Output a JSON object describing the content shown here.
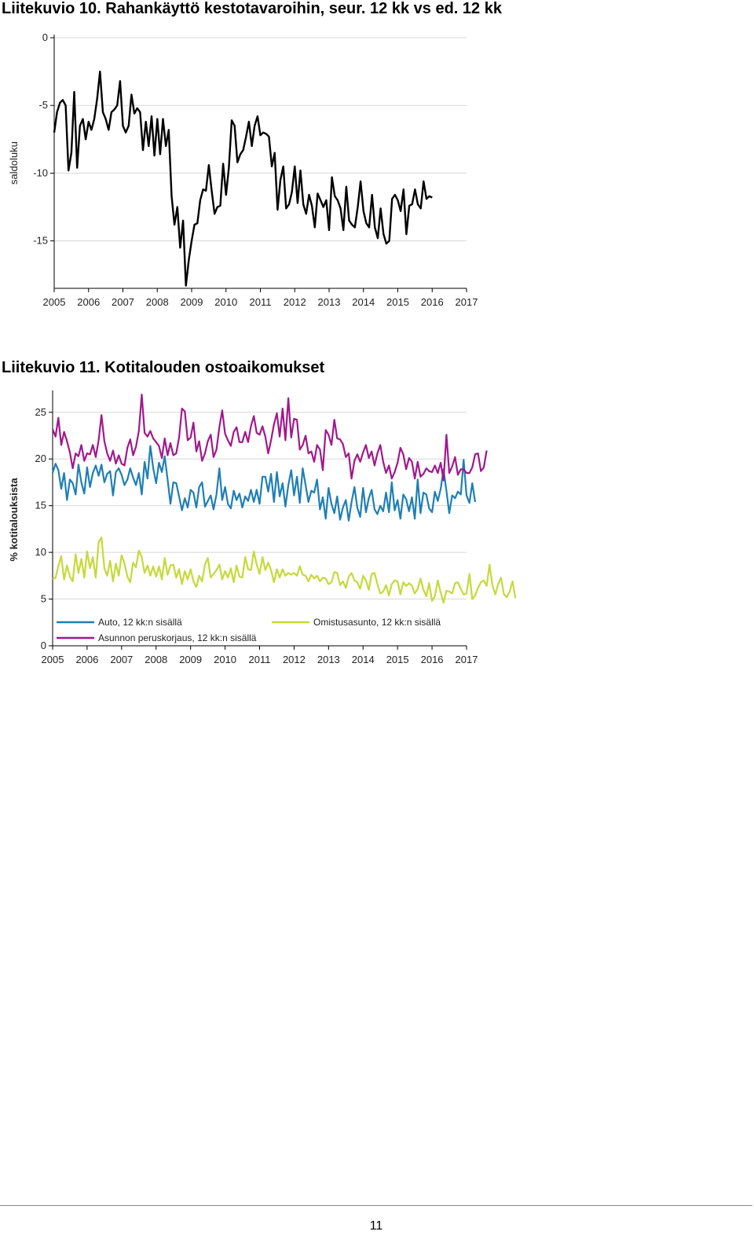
{
  "figures": [
    {
      "title": "Liitekuvio 10. Rahankäyttö kestotavaroihin, seur. 12 kk vs ed. 12 kk"
    },
    {
      "title": "Liitekuvio 11. Kotitalouden ostoaikomukset"
    }
  ],
  "page_number": "11",
  "chart_data": [
    {
      "type": "line",
      "title": "Liitekuvio 10. Rahankäyttö kestotavaroihin, seur. 12 kk vs ed. 12 kk",
      "xlabel": "",
      "ylabel": "saldoluku",
      "ylim": [
        -18.5,
        0
      ],
      "xlim": [
        2005,
        2017
      ],
      "yticks": [
        0,
        -5,
        -10,
        -15
      ],
      "ytick_labels": [
        "0",
        "-5",
        "-10",
        "-15"
      ],
      "xticks": [
        "2005",
        "2006",
        "2007",
        "2008",
        "2009",
        "2010",
        "2011",
        "2012",
        "2013",
        "2014",
        "2015",
        "2016",
        "2017"
      ],
      "grid": "horizontal",
      "colors": {
        "series": "#000000",
        "grid": "#d0d0d0",
        "axis": "#000000"
      },
      "series": [
        {
          "name": "",
          "x_start": "2005-01",
          "frequency": "monthly",
          "values": [
            -7,
            -5.5,
            -4.8,
            -4.6,
            -5,
            -9.8,
            -8.5,
            -4,
            -9.6,
            -6.5,
            -6,
            -7.5,
            -6.2,
            -6.8,
            -6,
            -4.5,
            -2.5,
            -5.5,
            -6,
            -6.8,
            -5.5,
            -5.3,
            -5,
            -3.2,
            -6.5,
            -7,
            -6.5,
            -4.2,
            -5.6,
            -5.2,
            -5.5,
            -8.3,
            -6.2,
            -8,
            -5.8,
            -8.7,
            -6,
            -8.6,
            -6,
            -8,
            -6.8,
            -11.7,
            -13.8,
            -12.5,
            -15.5,
            -13.5,
            -18.3,
            -16.4,
            -15,
            -13.8,
            -13.7,
            -12,
            -11.2,
            -11.3,
            -9.4,
            -11.3,
            -13,
            -12.5,
            -12.4,
            -9.3,
            -11.6,
            -9.6,
            -6.1,
            -6.5,
            -9.2,
            -8.6,
            -8.3,
            -7.3,
            -6.2,
            -8,
            -6.5,
            -5.8,
            -7.2,
            -7,
            -7.1,
            -7.3,
            -9.5,
            -8.5,
            -12.7,
            -10.5,
            -9.5,
            -12.6,
            -12.3,
            -11.4,
            -9.5,
            -12.2,
            -9.8,
            -12.3,
            -13,
            -11.6,
            -12.4,
            -14,
            -11.5,
            -12,
            -12.5,
            -12,
            -14.2,
            -10.3,
            -11.7,
            -12,
            -12.6,
            -14.2,
            -11,
            -13.5,
            -13.8,
            -14,
            -12.5,
            -10.6,
            -12.8,
            -13.7,
            -14,
            -11.6,
            -14,
            -14.8,
            -12.6,
            -14.5,
            -15.2,
            -15,
            -11.9,
            -11.6,
            -12,
            -12.8,
            -11.2,
            -14.5,
            -12.4,
            -12.3,
            -11.2,
            -12.3,
            -12.6,
            -10.6,
            -11.9,
            -11.7,
            -11.8
          ]
        }
      ]
    },
    {
      "type": "line",
      "title": "Liitekuvio 11. Kotitalouden ostoaikomukset",
      "xlabel": "",
      "ylabel": "% kotitalouksista",
      "ylim": [
        0,
        27
      ],
      "xlim": [
        2005,
        2017
      ],
      "yticks": [
        0,
        5,
        10,
        15,
        20,
        25
      ],
      "ytick_labels": [
        "0",
        "5",
        "10",
        "15",
        "20",
        "25"
      ],
      "xticks": [
        "2005",
        "2006",
        "2007",
        "2008",
        "2009",
        "2010",
        "2011",
        "2012",
        "2013",
        "2014",
        "2015",
        "2016",
        "2017"
      ],
      "grid": "horizontal",
      "legend": "inside-bottom",
      "series": [
        {
          "name": "Auto, 12 kk:n sisällä",
          "color": "#1f7fb4",
          "x_start": "2005-01",
          "frequency": "monthly",
          "values": [
            18.5,
            19.5,
            18.8,
            16.8,
            18.5,
            15.6,
            17.8,
            17.4,
            16.2,
            19.4,
            17.5,
            16.3,
            19.1,
            17,
            18.5,
            19.3,
            18.2,
            19.4,
            17.5,
            18.4,
            18.7,
            16.1,
            18.6,
            19,
            18.3,
            17.2,
            17.8,
            19,
            18,
            17.2,
            18.5,
            16.2,
            19.7,
            17.9,
            21.4,
            19,
            17.4,
            19.6,
            18.6,
            20.3,
            17.8,
            15.2,
            17.5,
            17.4,
            16,
            14.5,
            15.8,
            14.8,
            16.7,
            16.4,
            14.8,
            17,
            17.5,
            14.9,
            15.5,
            16.1,
            14.6,
            16.2,
            19,
            15.6,
            17,
            15.2,
            14.7,
            16.6,
            15.6,
            16.3,
            14.8,
            16,
            15.5,
            16.7,
            15.4,
            16.7,
            15.2,
            18.1,
            18.1,
            16.5,
            18.4,
            15.4,
            18.6,
            16,
            17.4,
            14.9,
            17.2,
            18.8,
            16.1,
            18.1,
            15.3,
            19,
            17.2,
            15.4,
            16.6,
            16.4,
            17.8,
            14.6,
            15.9,
            13.6,
            16.9,
            15.2,
            14.2,
            16,
            13.5,
            14.8,
            15.6,
            13.4,
            15.4,
            17,
            14.8,
            13.8,
            16.9,
            14.3,
            15.8,
            16.7,
            14.6,
            14.1,
            15,
            14.4,
            16.4,
            14.3,
            17.5,
            14.5,
            15.6,
            13.6,
            16.2,
            15.7,
            14.4,
            15.9,
            13.6,
            17.8,
            14.2,
            16.4,
            16.2,
            14.7,
            14.3,
            16.5,
            15.5,
            16.8,
            18.9,
            16.6,
            14.2,
            16.1,
            15.8,
            16.5,
            16.2,
            19.9,
            16.1,
            15.3,
            17.4,
            15.4
          ]
        },
        {
          "name": "Asunnon peruskorjaus, 12 kk:n sisällä",
          "color": "#a0198c",
          "x_start": "2005-01",
          "frequency": "monthly",
          "values": [
            23.2,
            22.4,
            24.4,
            21.5,
            22.9,
            21.9,
            20.7,
            19,
            20.6,
            20.3,
            21.5,
            19.8,
            20.6,
            20.5,
            21.5,
            20.2,
            22,
            24.7,
            21.9,
            20.6,
            19.8,
            20.9,
            19.5,
            20.4,
            19.5,
            19.3,
            21.2,
            22.1,
            20.4,
            21.3,
            23,
            26.9,
            22.8,
            22.4,
            23,
            22.2,
            21.8,
            21.4,
            20.1,
            22.2,
            20.4,
            21.7,
            20.4,
            20.6,
            22.3,
            25.4,
            25.1,
            22,
            22.3,
            23.9,
            20.8,
            21.9,
            19.8,
            20.6,
            21.9,
            22.6,
            20.2,
            21,
            23.4,
            25.2,
            22.7,
            22,
            21.4,
            22.9,
            23.4,
            21.8,
            21.8,
            22.9,
            21.8,
            23.5,
            24.6,
            22.8,
            22.6,
            23.5,
            22.4,
            20.6,
            22,
            23.7,
            24.9,
            22.4,
            25.4,
            22,
            26.5,
            22.3,
            24.3,
            24.2,
            21,
            21.5,
            22.5,
            20.6,
            20.8,
            19.7,
            21.5,
            21,
            18.8,
            23.1,
            22.6,
            21.5,
            24.2,
            22.2,
            22.1,
            21.6,
            20.2,
            20.6,
            17.9,
            19.8,
            20.5,
            19.7,
            20.7,
            21.5,
            20.1,
            20.8,
            19.3,
            20.6,
            21.5,
            19.7,
            18.5,
            19.3,
            17.9,
            18.6,
            19.6,
            21.2,
            20.5,
            18.9,
            20.1,
            19.7,
            17.9,
            19.7,
            18.1,
            18.4,
            19,
            18.7,
            18.6,
            19.3,
            18.5,
            19.6,
            17.7,
            22.6,
            18.5,
            19.2,
            20.2,
            18.3,
            18.9,
            18.9,
            18.5,
            18.5,
            19.1,
            20.5,
            20.6,
            18.7,
            19.1,
            20.9
          ]
        },
        {
          "name": "Omistusasunto, 12 kk:n sisällä",
          "color": "#c6d93b",
          "x_start": "2005-01",
          "frequency": "monthly",
          "values": [
            7.1,
            7.3,
            8.5,
            9.6,
            7.1,
            8.6,
            7.4,
            6.9,
            9.8,
            7.8,
            9.3,
            7.3,
            10.1,
            8.3,
            9.5,
            7.3,
            11.1,
            11.6,
            8.3,
            7.5,
            9.1,
            6.9,
            8.8,
            7.5,
            9.7,
            8.8,
            7.4,
            6.8,
            8.9,
            8.4,
            10.2,
            9.5,
            7.8,
            8.6,
            7.5,
            8.5,
            7.4,
            8.5,
            7.1,
            9.4,
            7.6,
            8.6,
            8.7,
            7.3,
            8.2,
            6.6,
            8,
            7.1,
            8.2,
            6.9,
            6.3,
            7.5,
            6.9,
            8.7,
            9.4,
            7.3,
            7.7,
            8.1,
            8.7,
            7.1,
            8,
            7.3,
            8.3,
            6.8,
            8.6,
            7.4,
            7.3,
            9.5,
            8.2,
            8.1,
            10.1,
            8.7,
            7.7,
            9.5,
            8.1,
            8.9,
            8.1,
            6.8,
            8.2,
            7.3,
            8.2,
            7.5,
            7.8,
            7.6,
            7.8,
            7.5,
            8.5,
            7.6,
            7.5,
            6.9,
            7.6,
            7.2,
            7.5,
            6.9,
            7.3,
            7.2,
            6.6,
            6.8,
            7.9,
            7.8,
            6.5,
            6.9,
            6.2,
            7.4,
            7.8,
            7,
            6.8,
            6.1,
            7.5,
            7,
            6,
            7.7,
            7.8,
            6.6,
            5.6,
            5.8,
            6.5,
            5.4,
            6.6,
            7,
            6.9,
            5.5,
            6.8,
            6.4,
            6.7,
            6.4,
            5.6,
            6.1,
            7.2,
            6,
            5.3,
            6.7,
            4.8,
            5.3,
            7,
            5.7,
            4.6,
            5.9,
            5.8,
            5.6,
            6.7,
            6.8,
            6.1,
            5.5,
            5.6,
            7.7,
            5,
            5.4,
            6.2,
            6.8,
            7,
            6.4,
            8.7,
            6.5,
            5.5,
            6.6,
            7.3,
            5.5,
            5.2,
            5.8,
            6.9,
            5.1
          ]
        }
      ]
    }
  ]
}
